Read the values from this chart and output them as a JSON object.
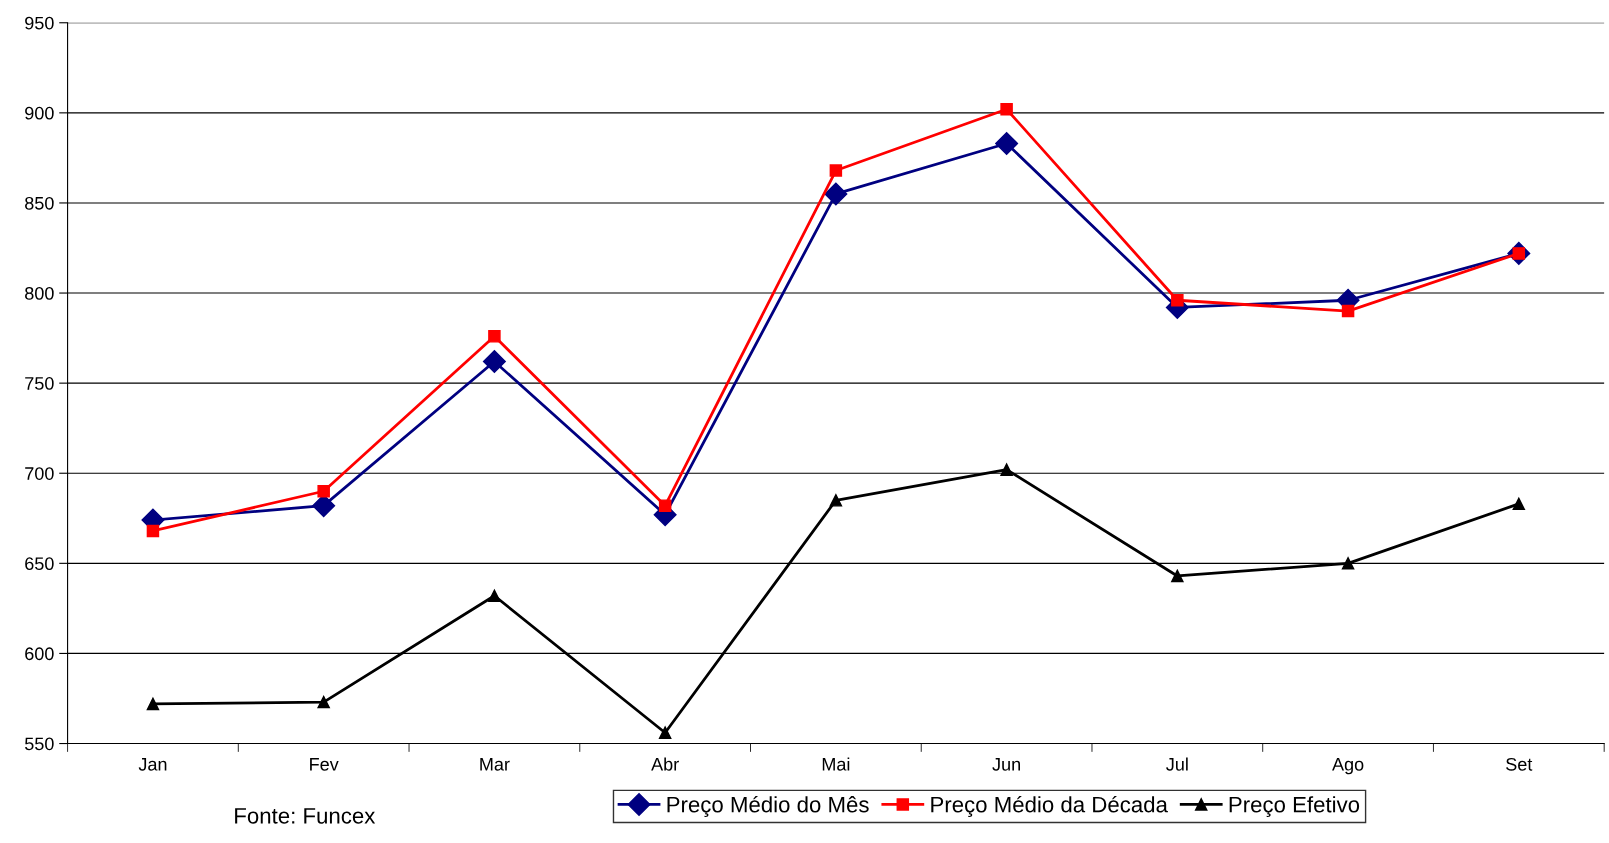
{
  "chart_data": {
    "type": "line",
    "categories": [
      "Jan",
      "Fev",
      "Mar",
      "Abr",
      "Mai",
      "Jun",
      "Jul",
      "Ago",
      "Set"
    ],
    "series": [
      {
        "name": "Preço Médio do Mês",
        "color": "#000080",
        "marker": "diamond",
        "values": [
          674,
          682,
          762,
          677,
          855,
          883,
          792,
          796,
          822
        ]
      },
      {
        "name": "Preço Médio da Década",
        "color": "#ff0000",
        "marker": "square",
        "values": [
          668,
          690,
          776,
          682,
          868,
          902,
          796,
          790,
          822
        ]
      },
      {
        "name": "Preço Efetivo",
        "color": "#000000",
        "marker": "triangle",
        "values": [
          572,
          573,
          632,
          556,
          685,
          702,
          643,
          650,
          683
        ]
      }
    ],
    "ylim": [
      550,
      950
    ],
    "yticks": [
      550,
      600,
      650,
      700,
      750,
      800,
      850,
      900,
      950
    ],
    "grid": "y",
    "legend": "bottom",
    "line_style": "solid",
    "annotations": [
      "Fonte: Funcex"
    ]
  }
}
